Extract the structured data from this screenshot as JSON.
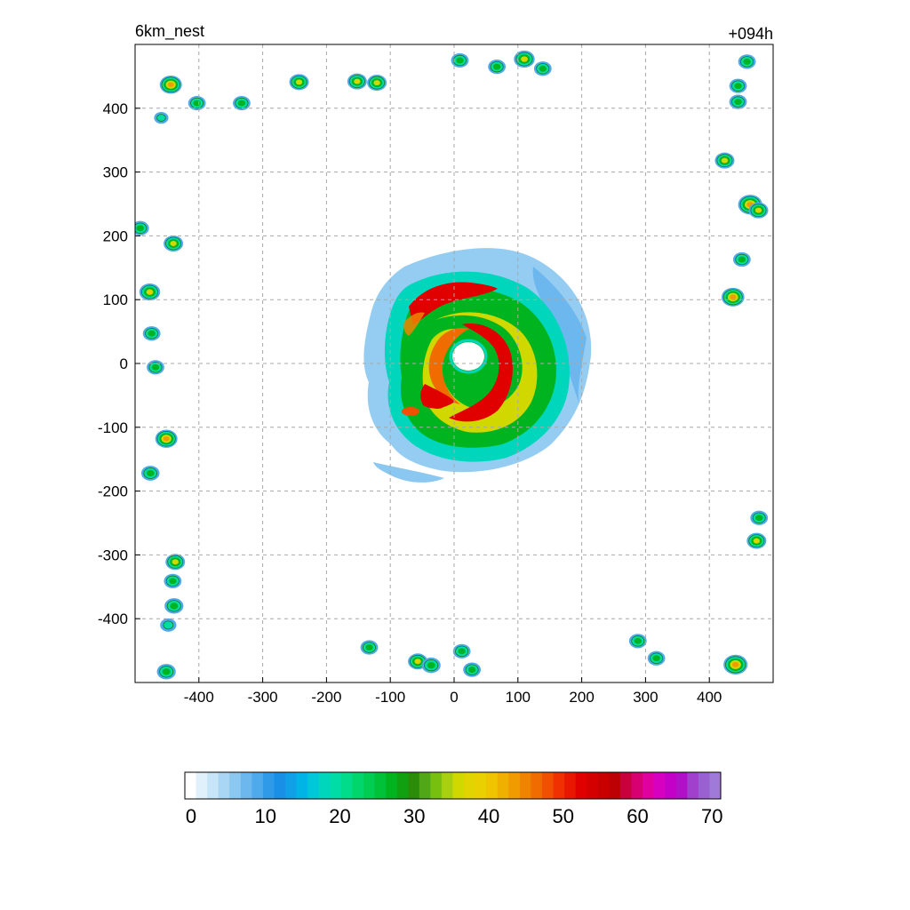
{
  "chart_data": {
    "type": "heatmap",
    "title_left": "6km_nest",
    "title_right": "+094h",
    "xlabel": "",
    "ylabel": "",
    "xlim": [
      -500,
      500
    ],
    "ylim": [
      -500,
      500
    ],
    "x_ticks": [
      -400,
      -300,
      -200,
      -100,
      0,
      100,
      200,
      300,
      400
    ],
    "x_tick_labels": [
      "-400",
      "-300",
      "-200",
      "-100",
      "0",
      "100",
      "200",
      "300",
      "400"
    ],
    "y_ticks": [
      400,
      300,
      200,
      100,
      0,
      -100,
      -200,
      -300,
      -400
    ],
    "y_tick_labels": [
      "400",
      "300",
      "200",
      "100",
      "0",
      "-100",
      "-200",
      "-300",
      "-400"
    ],
    "grid": true,
    "grid_style": "dashed",
    "colorbar": {
      "min": 0,
      "max": 72,
      "tick_values": [
        0,
        10,
        20,
        30,
        40,
        50,
        60,
        70
      ],
      "tick_labels": [
        "0",
        "10",
        "20",
        "30",
        "40",
        "50",
        "60",
        "70"
      ],
      "colors": [
        "#ffffff",
        "#e1f1fb",
        "#c7e5f8",
        "#a9d6f4",
        "#8ac7f1",
        "#6cb8ee",
        "#4faaeb",
        "#2f9ae8",
        "#1a8fe6",
        "#0fa0e8",
        "#00b4e6",
        "#00c8d8",
        "#00d6bc",
        "#00dca6",
        "#00dc8a",
        "#00d66c",
        "#00ce52",
        "#00c238",
        "#00b420",
        "#10a010",
        "#2a8c08",
        "#50a818",
        "#78c010",
        "#a8d010",
        "#d0d800",
        "#e2d400",
        "#ead000",
        "#f0c400",
        "#f0b000",
        "#f09c00",
        "#f08400",
        "#f06c00",
        "#f05000",
        "#f03000",
        "#e81800",
        "#e00000",
        "#d40000",
        "#c80000",
        "#bc0004",
        "#c8003c",
        "#d80070",
        "#e000a0",
        "#d800c0",
        "#c400c8",
        "#b010c8",
        "#a040cc",
        "#9860d0",
        "#a07ad8"
      ]
    },
    "features": [
      {
        "kind": "storm",
        "center": [
          25,
          5
        ],
        "eye_radius": 22,
        "max_value": 55
      },
      {
        "kind": "rainband",
        "x": -60,
        "y": 100,
        "value": 45
      },
      {
        "kind": "rainband",
        "x": 30,
        "y": 120,
        "value": 40
      },
      {
        "kind": "rainband",
        "x": -40,
        "y": -75,
        "value": 44
      },
      {
        "kind": "cell",
        "x": -474,
        "y": 47,
        "value": 30
      },
      {
        "kind": "cell",
        "x": -476,
        "y": -172,
        "value": 32
      },
      {
        "kind": "cell",
        "x": -459,
        "y": 385,
        "value": 20
      },
      {
        "kind": "cell",
        "x": -444,
        "y": 437,
        "value": 44
      },
      {
        "kind": "cell",
        "x": -403,
        "y": 408,
        "value": 30
      },
      {
        "kind": "cell",
        "x": -333,
        "y": 408,
        "value": 30
      },
      {
        "kind": "cell",
        "x": -243,
        "y": 441,
        "value": 36
      },
      {
        "kind": "cell",
        "x": -152,
        "y": 442,
        "value": 36
      },
      {
        "kind": "cell",
        "x": -121,
        "y": 440,
        "value": 36
      },
      {
        "kind": "cell",
        "x": 9,
        "y": 475,
        "value": 30
      },
      {
        "kind": "cell",
        "x": 67,
        "y": 465,
        "value": 30
      },
      {
        "kind": "cell",
        "x": 110,
        "y": 477,
        "value": 40
      },
      {
        "kind": "cell",
        "x": 139,
        "y": 462,
        "value": 30
      },
      {
        "kind": "cell",
        "x": 459,
        "y": 473,
        "value": 30
      },
      {
        "kind": "cell",
        "x": 445,
        "y": 435,
        "value": 30
      },
      {
        "kind": "cell",
        "x": 445,
        "y": 410,
        "value": 30
      },
      {
        "kind": "cell",
        "x": 424,
        "y": 318,
        "value": 36
      },
      {
        "kind": "cell",
        "x": 464,
        "y": 249,
        "value": 50
      },
      {
        "kind": "cell",
        "x": 477,
        "y": 240,
        "value": 36
      },
      {
        "kind": "cell",
        "x": 451,
        "y": 163,
        "value": 30
      },
      {
        "kind": "cell",
        "x": 437,
        "y": 104,
        "value": 46
      },
      {
        "kind": "cell",
        "x": -492,
        "y": 212,
        "value": 30
      },
      {
        "kind": "cell",
        "x": -440,
        "y": 188,
        "value": 36
      },
      {
        "kind": "cell",
        "x": -477,
        "y": 112,
        "value": 40
      },
      {
        "kind": "cell",
        "x": -468,
        "y": -6,
        "value": 30
      },
      {
        "kind": "cell",
        "x": -451,
        "y": -118,
        "value": 44
      },
      {
        "kind": "cell",
        "x": -437,
        "y": -311,
        "value": 36
      },
      {
        "kind": "cell",
        "x": -441,
        "y": -341,
        "value": 30
      },
      {
        "kind": "cell",
        "x": -439,
        "y": -380,
        "value": 34
      },
      {
        "kind": "cell",
        "x": -448,
        "y": -410,
        "value": 26
      },
      {
        "kind": "cell",
        "x": -451,
        "y": -483,
        "value": 34
      },
      {
        "kind": "cell",
        "x": -133,
        "y": -445,
        "value": 30
      },
      {
        "kind": "cell",
        "x": -57,
        "y": -467,
        "value": 36
      },
      {
        "kind": "cell",
        "x": -36,
        "y": -473,
        "value": 34
      },
      {
        "kind": "cell",
        "x": 12,
        "y": -451,
        "value": 30
      },
      {
        "kind": "cell",
        "x": 28,
        "y": -480,
        "value": 30
      },
      {
        "kind": "cell",
        "x": 288,
        "y": -435,
        "value": 30
      },
      {
        "kind": "cell",
        "x": 317,
        "y": -462,
        "value": 30
      },
      {
        "kind": "cell",
        "x": 441,
        "y": -472,
        "value": 50
      },
      {
        "kind": "cell",
        "x": 474,
        "y": -278,
        "value": 36
      },
      {
        "kind": "cell",
        "x": 478,
        "y": -242,
        "value": 30
      }
    ]
  }
}
